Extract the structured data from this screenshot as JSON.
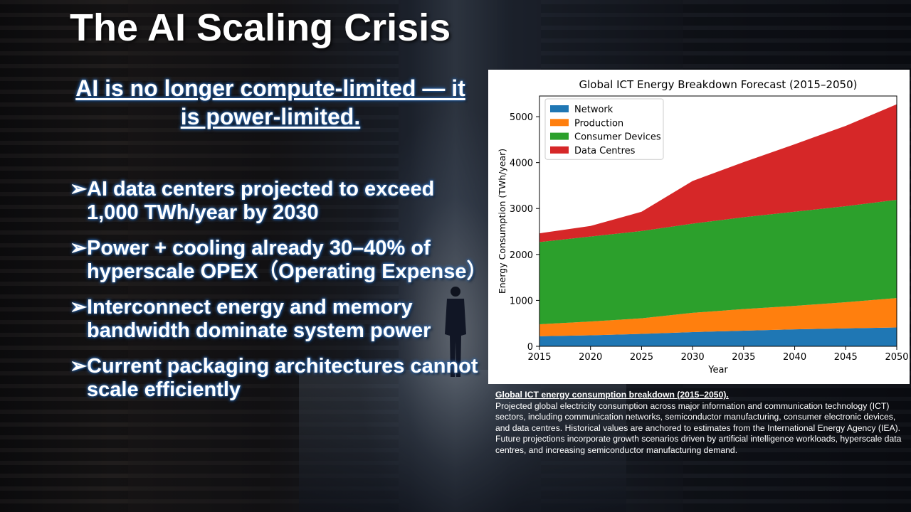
{
  "slide": {
    "title": "The AI Scaling Crisis",
    "subtitle": "AI is no longer compute-limited — it is power-limited.",
    "bullet_marker": "➢",
    "bullets": [
      "AI data centers projected to exceed 1,000 TWh/year by 2030",
      "Power + cooling already 30–40% of hyperscale OPEX（Operating Expense）",
      "Interconnect energy and memory bandwidth dominate system power",
      "Current packaging architectures cannot scale efficiently"
    ]
  },
  "caption": {
    "title": "Global ICT energy consumption breakdown (2015–2050).",
    "body": "Projected global electricity consumption across major information and communication technology (ICT) sectors, including communication networks, semiconductor manufacturing, consumer electronic devices, and data centres. Historical values are anchored to estimates from the International Energy Agency (IEA). Future projections incorporate growth scenarios driven by artificial intelligence workloads, hyperscale data centres, and increasing semiconductor manufacturing demand."
  },
  "chart_data": {
    "type": "area",
    "stacked": true,
    "title": "Global ICT Energy Breakdown Forecast (2015–2050)",
    "xlabel": "Year",
    "ylabel": "Energy Consumption (TWh/year)",
    "x": [
      2015,
      2020,
      2025,
      2030,
      2035,
      2040,
      2045,
      2050
    ],
    "xticks": [
      2015,
      2020,
      2025,
      2030,
      2035,
      2040,
      2045,
      2050
    ],
    "xlim": [
      2015,
      2050
    ],
    "ylim": [
      0,
      5450
    ],
    "yticks": [
      0,
      1000,
      2000,
      3000,
      4000,
      5000
    ],
    "legend_position": "top-left",
    "grid": false,
    "series": [
      {
        "name": "Network",
        "color": "#1f77b4",
        "values": [
          220,
          240,
          270,
          310,
          340,
          370,
          390,
          410
        ]
      },
      {
        "name": "Production",
        "color": "#ff7f0e",
        "values": [
          260,
          300,
          340,
          420,
          470,
          510,
          570,
          640
        ]
      },
      {
        "name": "Consumer Devices",
        "color": "#2ca02c",
        "values": [
          1790,
          1850,
          1900,
          1940,
          2000,
          2050,
          2090,
          2140
        ]
      },
      {
        "name": "Data Centres",
        "color": "#d62728",
        "values": [
          190,
          230,
          420,
          930,
          1200,
          1470,
          1750,
          2080
        ]
      }
    ]
  }
}
